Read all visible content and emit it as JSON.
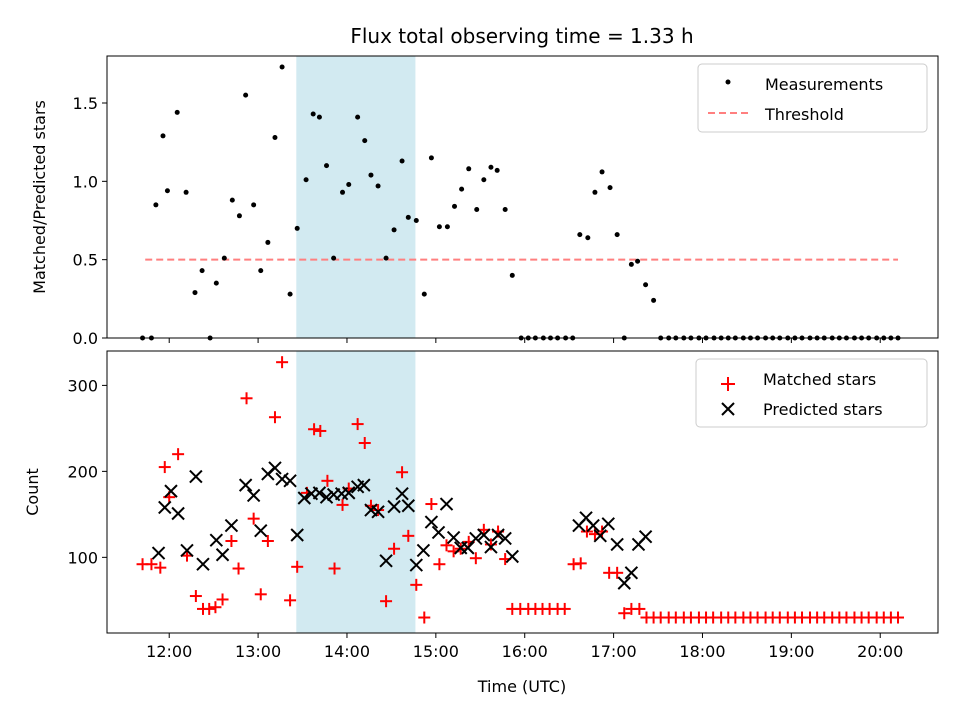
{
  "chart_data": [
    {
      "type": "scatter",
      "title": "Flux total observing time = 1.33 h",
      "ylabel": "Matched/Predicted stars",
      "xlabel": "",
      "ylim": [
        0,
        1.8
      ],
      "yticks": [
        "0.0",
        "0.5",
        "1.0",
        "1.5"
      ],
      "xlim_hours": [
        11.3,
        20.65
      ],
      "shaded_span_hours": [
        13.43,
        14.77
      ],
      "shade_color": "#add8e6",
      "legend": {
        "placement": "upper right",
        "entries": [
          "Measurements",
          "Threshold"
        ]
      },
      "threshold": {
        "name": "Threshold",
        "value": 0.5,
        "x_range_hours": [
          11.73,
          20.2
        ],
        "color": "#ff7f7f"
      },
      "series": [
        {
          "name": "Measurements",
          "color": "#000000",
          "marker": "dot",
          "x_hours": [
            11.7,
            11.8,
            11.85,
            11.93,
            11.98,
            12.09,
            12.19,
            12.29,
            12.37,
            12.46,
            12.53,
            12.62,
            12.71,
            12.79,
            12.86,
            12.95,
            13.03,
            13.11,
            13.19,
            13.27,
            13.36,
            13.44,
            13.54,
            13.62,
            13.69,
            13.77,
            13.85,
            13.95,
            14.02,
            14.12,
            14.2,
            14.27,
            14.35,
            14.44,
            14.53,
            14.62,
            14.69,
            14.78,
            14.87,
            14.95,
            15.04,
            15.13,
            15.21,
            15.29,
            15.37,
            15.46,
            15.54,
            15.62,
            15.69,
            15.78,
            15.86,
            15.96,
            16.04,
            16.12,
            16.21,
            16.29,
            16.37,
            16.46,
            16.54,
            16.62,
            16.71,
            16.79,
            16.87,
            16.96,
            17.04,
            17.12,
            17.2,
            17.27,
            17.36,
            17.45,
            17.53,
            17.62,
            17.7,
            17.79,
            17.87,
            17.96,
            18.04,
            18.13,
            18.21,
            18.29,
            18.37,
            18.46,
            18.54,
            18.62,
            18.71,
            18.79,
            18.87,
            18.96,
            19.04,
            19.12,
            19.21,
            19.29,
            19.37,
            19.46,
            19.54,
            19.62,
            19.71,
            19.79,
            19.87,
            19.96,
            20.04,
            20.12,
            20.2
          ],
          "y": [
            0,
            0,
            0.85,
            1.29,
            0.94,
            1.44,
            0.93,
            0.29,
            0.43,
            0,
            0.35,
            0.51,
            0.88,
            0.78,
            1.55,
            0.85,
            0.43,
            0.61,
            1.28,
            1.73,
            0.28,
            0.7,
            1.01,
            1.43,
            1.41,
            1.1,
            0.51,
            0.93,
            0.98,
            1.41,
            1.26,
            1.04,
            0.97,
            0.51,
            0.69,
            1.13,
            0.77,
            0.75,
            0.28,
            1.15,
            0.71,
            0.71,
            0.84,
            0.95,
            1.08,
            0.82,
            1.01,
            1.09,
            1.07,
            0.82,
            0.4,
            0,
            0,
            0,
            0,
            0,
            0,
            0,
            0,
            0.66,
            0.64,
            0.93,
            1.06,
            0.96,
            0.66,
            0,
            0.47,
            0.49,
            0.34,
            0.24,
            0,
            0,
            0,
            0,
            0,
            0,
            0,
            0,
            0,
            0,
            0,
            0,
            0,
            0,
            0,
            0,
            0,
            0,
            0,
            0,
            0,
            0,
            0,
            0,
            0,
            0,
            0,
            0,
            0,
            0,
            0,
            0,
            0
          ]
        }
      ]
    },
    {
      "type": "scatter",
      "title": "",
      "ylabel": "Count",
      "xlabel": "Time (UTC)",
      "ylim": [
        12,
        340
      ],
      "yticks": [
        "100",
        "200",
        "300"
      ],
      "xlim_hours": [
        11.3,
        20.65
      ],
      "xticks": [
        "12:00",
        "13:00",
        "14:00",
        "15:00",
        "16:00",
        "17:00",
        "18:00",
        "19:00",
        "20:00"
      ],
      "shaded_span_hours": [
        13.43,
        14.77
      ],
      "shade_color": "#add8e6",
      "legend": {
        "placement": "upper right",
        "entries": [
          "Matched stars",
          "Predicted stars"
        ]
      },
      "series": [
        {
          "name": "Matched stars",
          "color": "#ff0000",
          "marker": "plus",
          "x_hours": [
            11.7,
            11.8,
            11.9,
            11.95,
            12.0,
            12.1,
            12.2,
            12.3,
            12.38,
            12.45,
            12.52,
            12.6,
            12.7,
            12.78,
            12.87,
            12.95,
            13.03,
            13.11,
            13.19,
            13.27,
            13.36,
            13.44,
            13.55,
            13.63,
            13.7,
            13.78,
            13.86,
            13.95,
            14.02,
            14.12,
            14.2,
            14.27,
            14.35,
            14.44,
            14.53,
            14.62,
            14.69,
            14.78,
            14.87,
            14.95,
            15.04,
            15.12,
            15.2,
            15.28,
            15.37,
            15.45,
            15.54,
            15.62,
            15.7,
            15.78,
            15.86,
            15.95,
            16.04,
            16.12,
            16.2,
            16.28,
            16.37,
            16.45,
            16.55,
            16.63,
            16.7,
            16.79,
            16.87,
            16.95,
            17.04,
            17.12,
            17.2,
            17.29,
            17.37,
            17.45,
            17.53,
            17.62,
            17.7,
            17.79,
            17.87,
            17.96,
            18.04,
            18.12,
            18.21,
            18.29,
            18.37,
            18.46,
            18.54,
            18.62,
            18.71,
            18.79,
            18.87,
            18.96,
            19.04,
            19.12,
            19.21,
            19.29,
            19.37,
            19.46,
            19.54,
            19.62,
            19.71,
            19.79,
            19.87,
            19.96,
            20.04,
            20.12,
            20.2
          ],
          "y": [
            92,
            92,
            88,
            205,
            170,
            220,
            102,
            55,
            40,
            40,
            42,
            51,
            119,
            87,
            285,
            145,
            57,
            119,
            263,
            327,
            50,
            89,
            175,
            249,
            247,
            189,
            87,
            161,
            180,
            255,
            233,
            160,
            155,
            49,
            110,
            199,
            125,
            68,
            30,
            162,
            92,
            114,
            107,
            110,
            118,
            99,
            132,
            115,
            130,
            98,
            40,
            40,
            40,
            40,
            40,
            40,
            40,
            40,
            92,
            93,
            130,
            127,
            130,
            82,
            82,
            35,
            40,
            40,
            30,
            30,
            30,
            30,
            30,
            30,
            30,
            30,
            30,
            30,
            30,
            30,
            30,
            30,
            30,
            30,
            30,
            30,
            30,
            30,
            30,
            30,
            30,
            30,
            30,
            30,
            30,
            30,
            30,
            30,
            30,
            30,
            30,
            30,
            30
          ]
        },
        {
          "name": "Predicted stars",
          "color": "#000000",
          "marker": "x",
          "x_hours": [
            11.88,
            11.95,
            12.02,
            12.1,
            12.2,
            12.3,
            12.38,
            12.53,
            12.6,
            12.7,
            12.86,
            12.95,
            13.03,
            13.11,
            13.19,
            13.27,
            13.36,
            13.44,
            13.52,
            13.6,
            13.69,
            13.77,
            13.85,
            13.94,
            14.02,
            14.12,
            14.19,
            14.27,
            14.35,
            14.44,
            14.53,
            14.62,
            14.69,
            14.78,
            14.86,
            14.95,
            15.03,
            15.12,
            15.2,
            15.28,
            15.36,
            15.45,
            15.54,
            15.62,
            15.7,
            15.78,
            15.86,
            16.61,
            16.69,
            16.77,
            16.85,
            16.94,
            17.04,
            17.12,
            17.2,
            17.28,
            17.36
          ],
          "y": [
            105,
            158,
            177,
            151,
            108,
            194,
            92,
            120,
            103,
            137,
            184,
            172,
            131,
            197,
            204,
            191,
            189,
            126,
            169,
            174,
            175,
            170,
            173,
            174,
            175,
            182,
            184,
            155,
            153,
            96,
            159,
            174,
            160,
            91,
            108,
            141,
            129,
            162,
            123,
            111,
            111,
            122,
            126,
            112,
            126,
            122,
            101,
            137,
            146,
            137,
            125,
            139,
            115,
            70,
            82,
            115,
            124
          ]
        }
      ]
    }
  ]
}
